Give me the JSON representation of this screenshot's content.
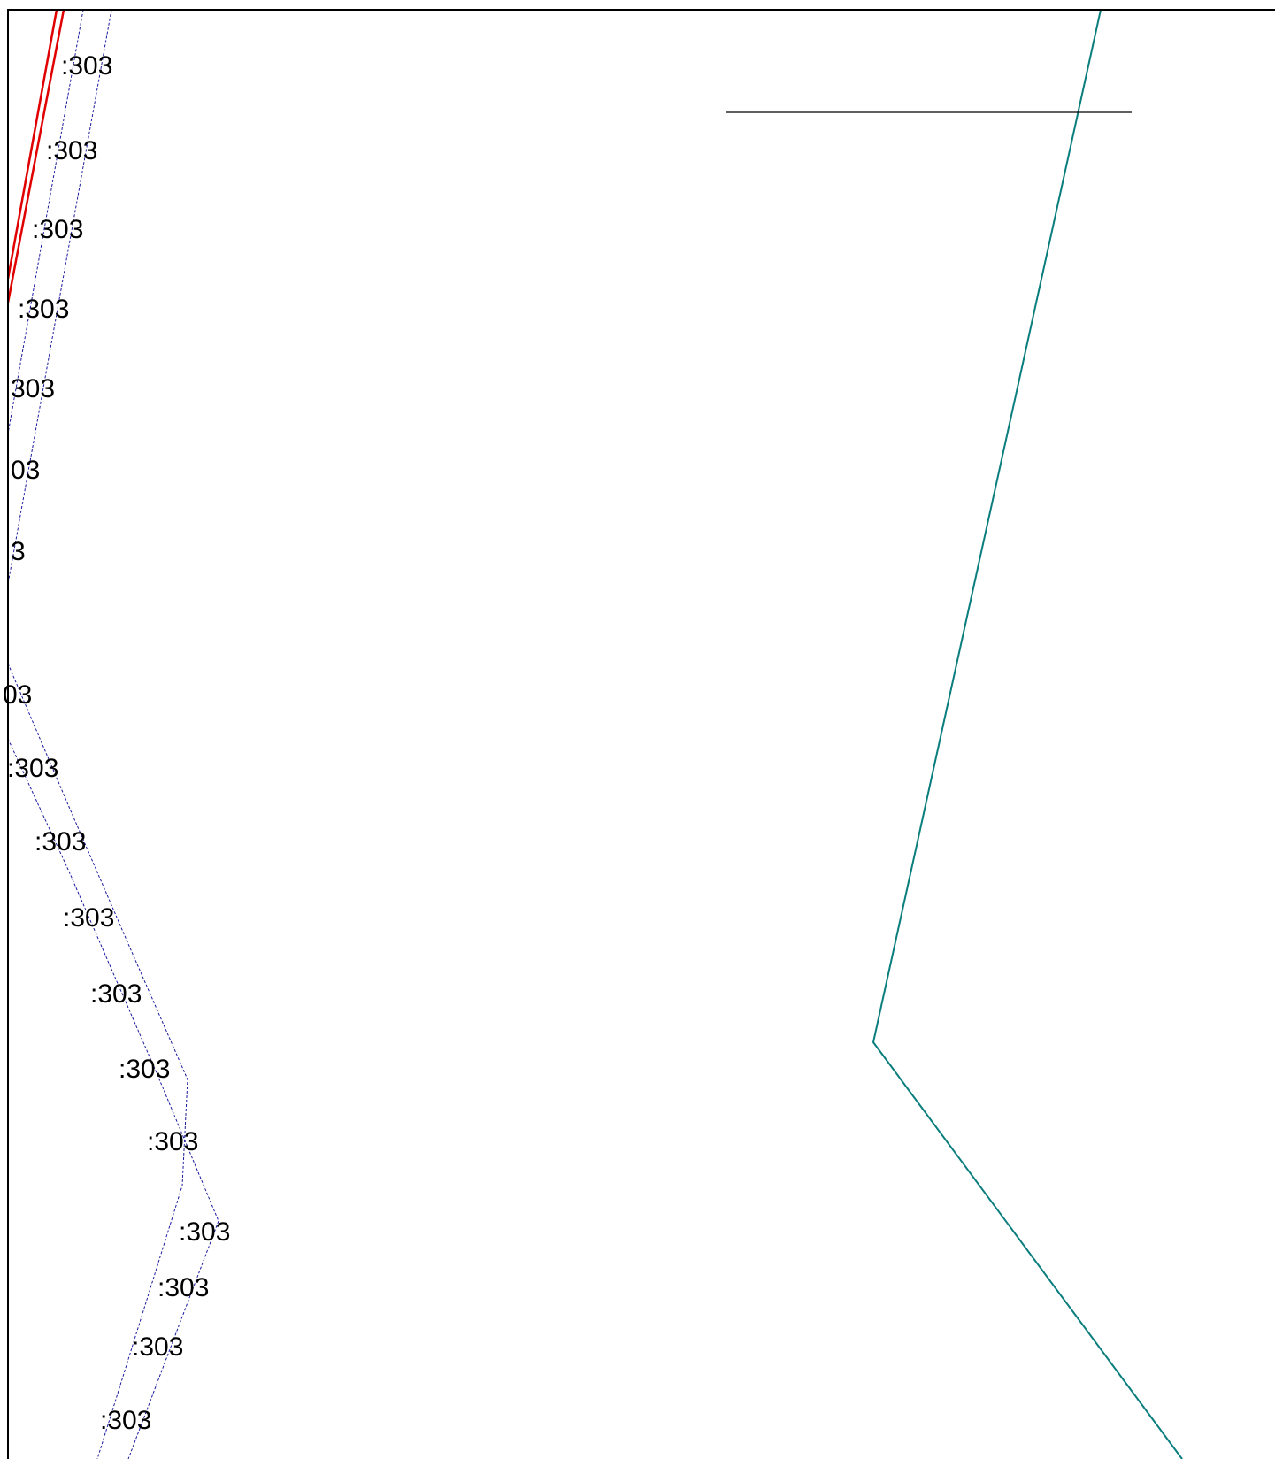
{
  "map": {
    "colors": {
      "frame": "#000000",
      "red_line": "#e00000",
      "blue_dashed": "#1a1aa0",
      "teal_line": "#0a7d7d",
      "black_line": "#000000",
      "label": "#000000"
    },
    "labels": [
      ":303",
      ":303",
      ":303",
      ":303",
      "303",
      "03",
      "3",
      "03",
      ":303",
      ":303",
      ":303",
      ":303",
      ":303",
      ":303",
      ":303",
      ":303",
      ":303",
      ":303"
    ]
  }
}
